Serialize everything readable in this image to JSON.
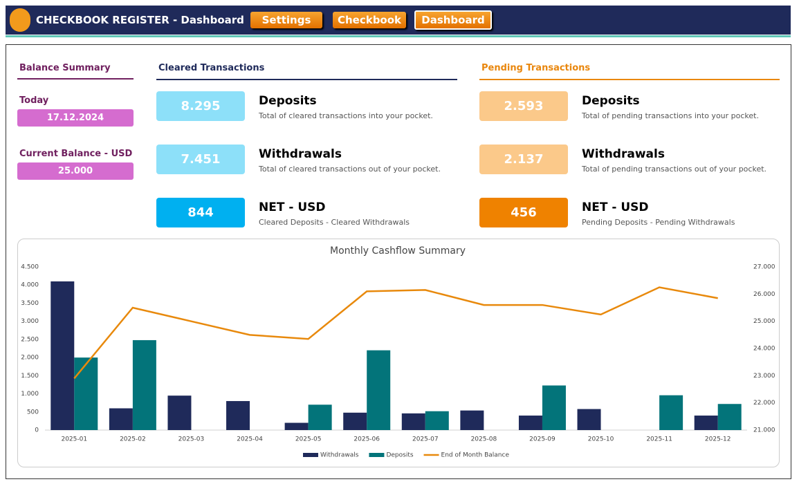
{
  "header": {
    "title": "CHECKBOOK REGISTER - Dashboard",
    "nav": [
      "Settings",
      "Checkbook",
      "Dashboard"
    ]
  },
  "balance_summary": {
    "title": "Balance Summary",
    "today_label": "Today",
    "today": "17.12.2024",
    "balance_label": "Current Balance - USD",
    "balance": "25.000"
  },
  "cleared": {
    "title": "Cleared Transactions",
    "items": [
      {
        "value": "8.295",
        "label": "Deposits",
        "description": "Total of cleared transactions into your pocket."
      },
      {
        "value": "7.451",
        "label": "Withdrawals",
        "description": "Total of cleared transactions out of your pocket."
      },
      {
        "value": "844",
        "label": "NET - USD",
        "description": "Cleared Deposits - Cleared Withdrawals"
      }
    ]
  },
  "pending": {
    "title": "Pending Transactions",
    "items": [
      {
        "value": "2.593",
        "label": "Deposits",
        "description": "Total of pending transactions into your pocket."
      },
      {
        "value": "2.137",
        "label": "Withdrawals",
        "description": "Total of pending transactions out of your pocket."
      },
      {
        "value": "456",
        "label": "NET - USD",
        "description": "Pending Deposits - Pending Withdrawals"
      }
    ]
  },
  "chart_data": {
    "type": "bar",
    "title": "Monthly Cashflow Summary",
    "categories": [
      "2025-01",
      "2025-02",
      "2025-03",
      "2025-04",
      "2025-05",
      "2025-06",
      "2025-07",
      "2025-08",
      "2025-09",
      "2025-10",
      "2025-11",
      "2025-12"
    ],
    "series": [
      {
        "name": "Withdrawals",
        "type": "bar",
        "color": "#1f2a5a",
        "values": [
          4100,
          600,
          950,
          800,
          200,
          480,
          460,
          540,
          400,
          580,
          0,
          400
        ]
      },
      {
        "name": "Deposits",
        "type": "bar",
        "color": "#03747a",
        "values": [
          2000,
          2480,
          0,
          0,
          700,
          2200,
          520,
          0,
          1230,
          0,
          960,
          720
        ]
      },
      {
        "name": "End of Month Balance",
        "type": "line",
        "axis": "y2",
        "color": "#e8890c",
        "values": [
          22900,
          25500,
          25000,
          24500,
          24350,
          26100,
          26150,
          25600,
          25600,
          25250,
          26250,
          25850
        ]
      }
    ],
    "ylim": [
      0,
      4500
    ],
    "yticks": [
      0,
      500,
      {
        "value": 1000,
        "label": "1.000"
      },
      {
        "value": 1500,
        "label": "1.500"
      },
      {
        "value": 2000,
        "label": "2.000"
      },
      {
        "value": 2500,
        "label": "2.500"
      },
      {
        "value": 3000,
        "label": "3.000"
      },
      {
        "value": 3500,
        "label": "3.500"
      },
      {
        "value": 4000,
        "label": "4.000"
      },
      {
        "value": 4500,
        "label": "4.500"
      }
    ],
    "y2lim": [
      21000,
      27000
    ],
    "y2ticks": [
      {
        "value": 21000,
        "label": "21.000"
      },
      {
        "value": 22000,
        "label": "22.000"
      },
      {
        "value": 23000,
        "label": "23.000"
      },
      {
        "value": 24000,
        "label": "24.000"
      },
      {
        "value": 25000,
        "label": "25.000"
      },
      {
        "value": 26000,
        "label": "26.000"
      },
      {
        "value": 27000,
        "label": "27.000"
      }
    ],
    "grid": false,
    "legend": "bottom"
  }
}
